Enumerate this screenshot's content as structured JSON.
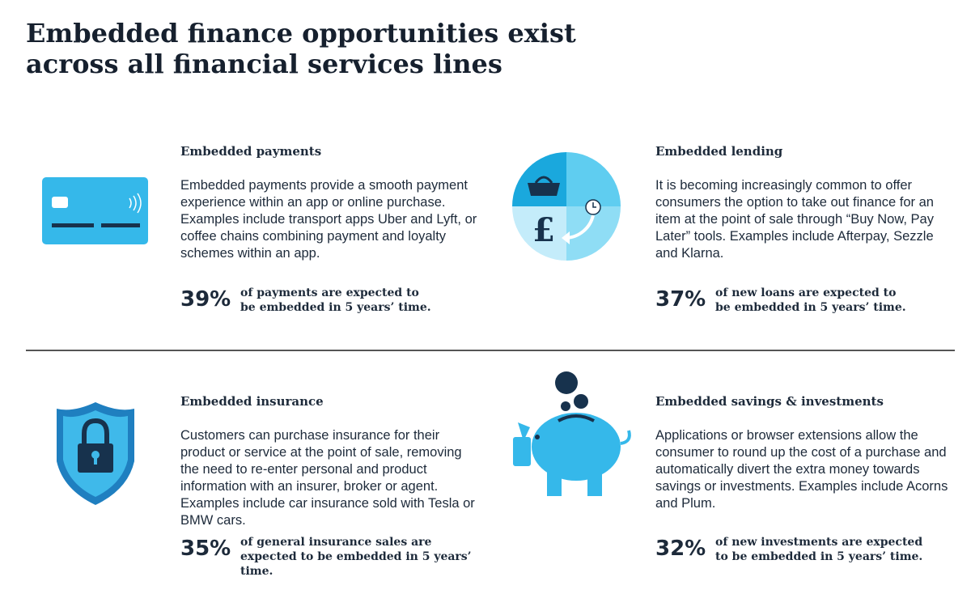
{
  "title": "Embedded finance opportunities exist across all financial services lines",
  "sections": [
    {
      "heading": "Embedded payments",
      "body": "Embedded payments provide a smooth payment experience within an app or online purchase. Examples include transport apps Uber and Lyft, or coffee chains combining payment and loyalty schemes within an app.",
      "stat": "39%",
      "stat_text": "of payments are expected to be embedded in 5 years’ time."
    },
    {
      "heading": "Embedded lending",
      "body": "It is becoming increasingly common to offer consumers the option to take out finance for an item at the point of sale through “Buy Now, Pay Later” tools. Examples include Afterpay, Sezzle and Klarna.",
      "stat": "37%",
      "stat_text": "of new loans are expected to be embedded in 5 years’ time."
    },
    {
      "heading": "Embedded insurance",
      "body": "Customers can purchase insurance for their product or service at the point of sale, removing the need to re-enter personal and product information with an insurer, broker or agent. Examples include car insurance sold with Tesla or BMW cars.",
      "stat": "35%",
      "stat_text": "of general insurance sales are expected to be embedded in 5 years’ time."
    },
    {
      "heading": "Embedded savings & investments",
      "body": "Applications or browser extensions allow the consumer to round up the cost of a purchase and automatically divert the extra money towards savings or investments. Examples include Acorns and Plum.",
      "stat": "32%",
      "stat_text": "of new investments are expected to be embedded in 5 years’ time."
    }
  ]
}
